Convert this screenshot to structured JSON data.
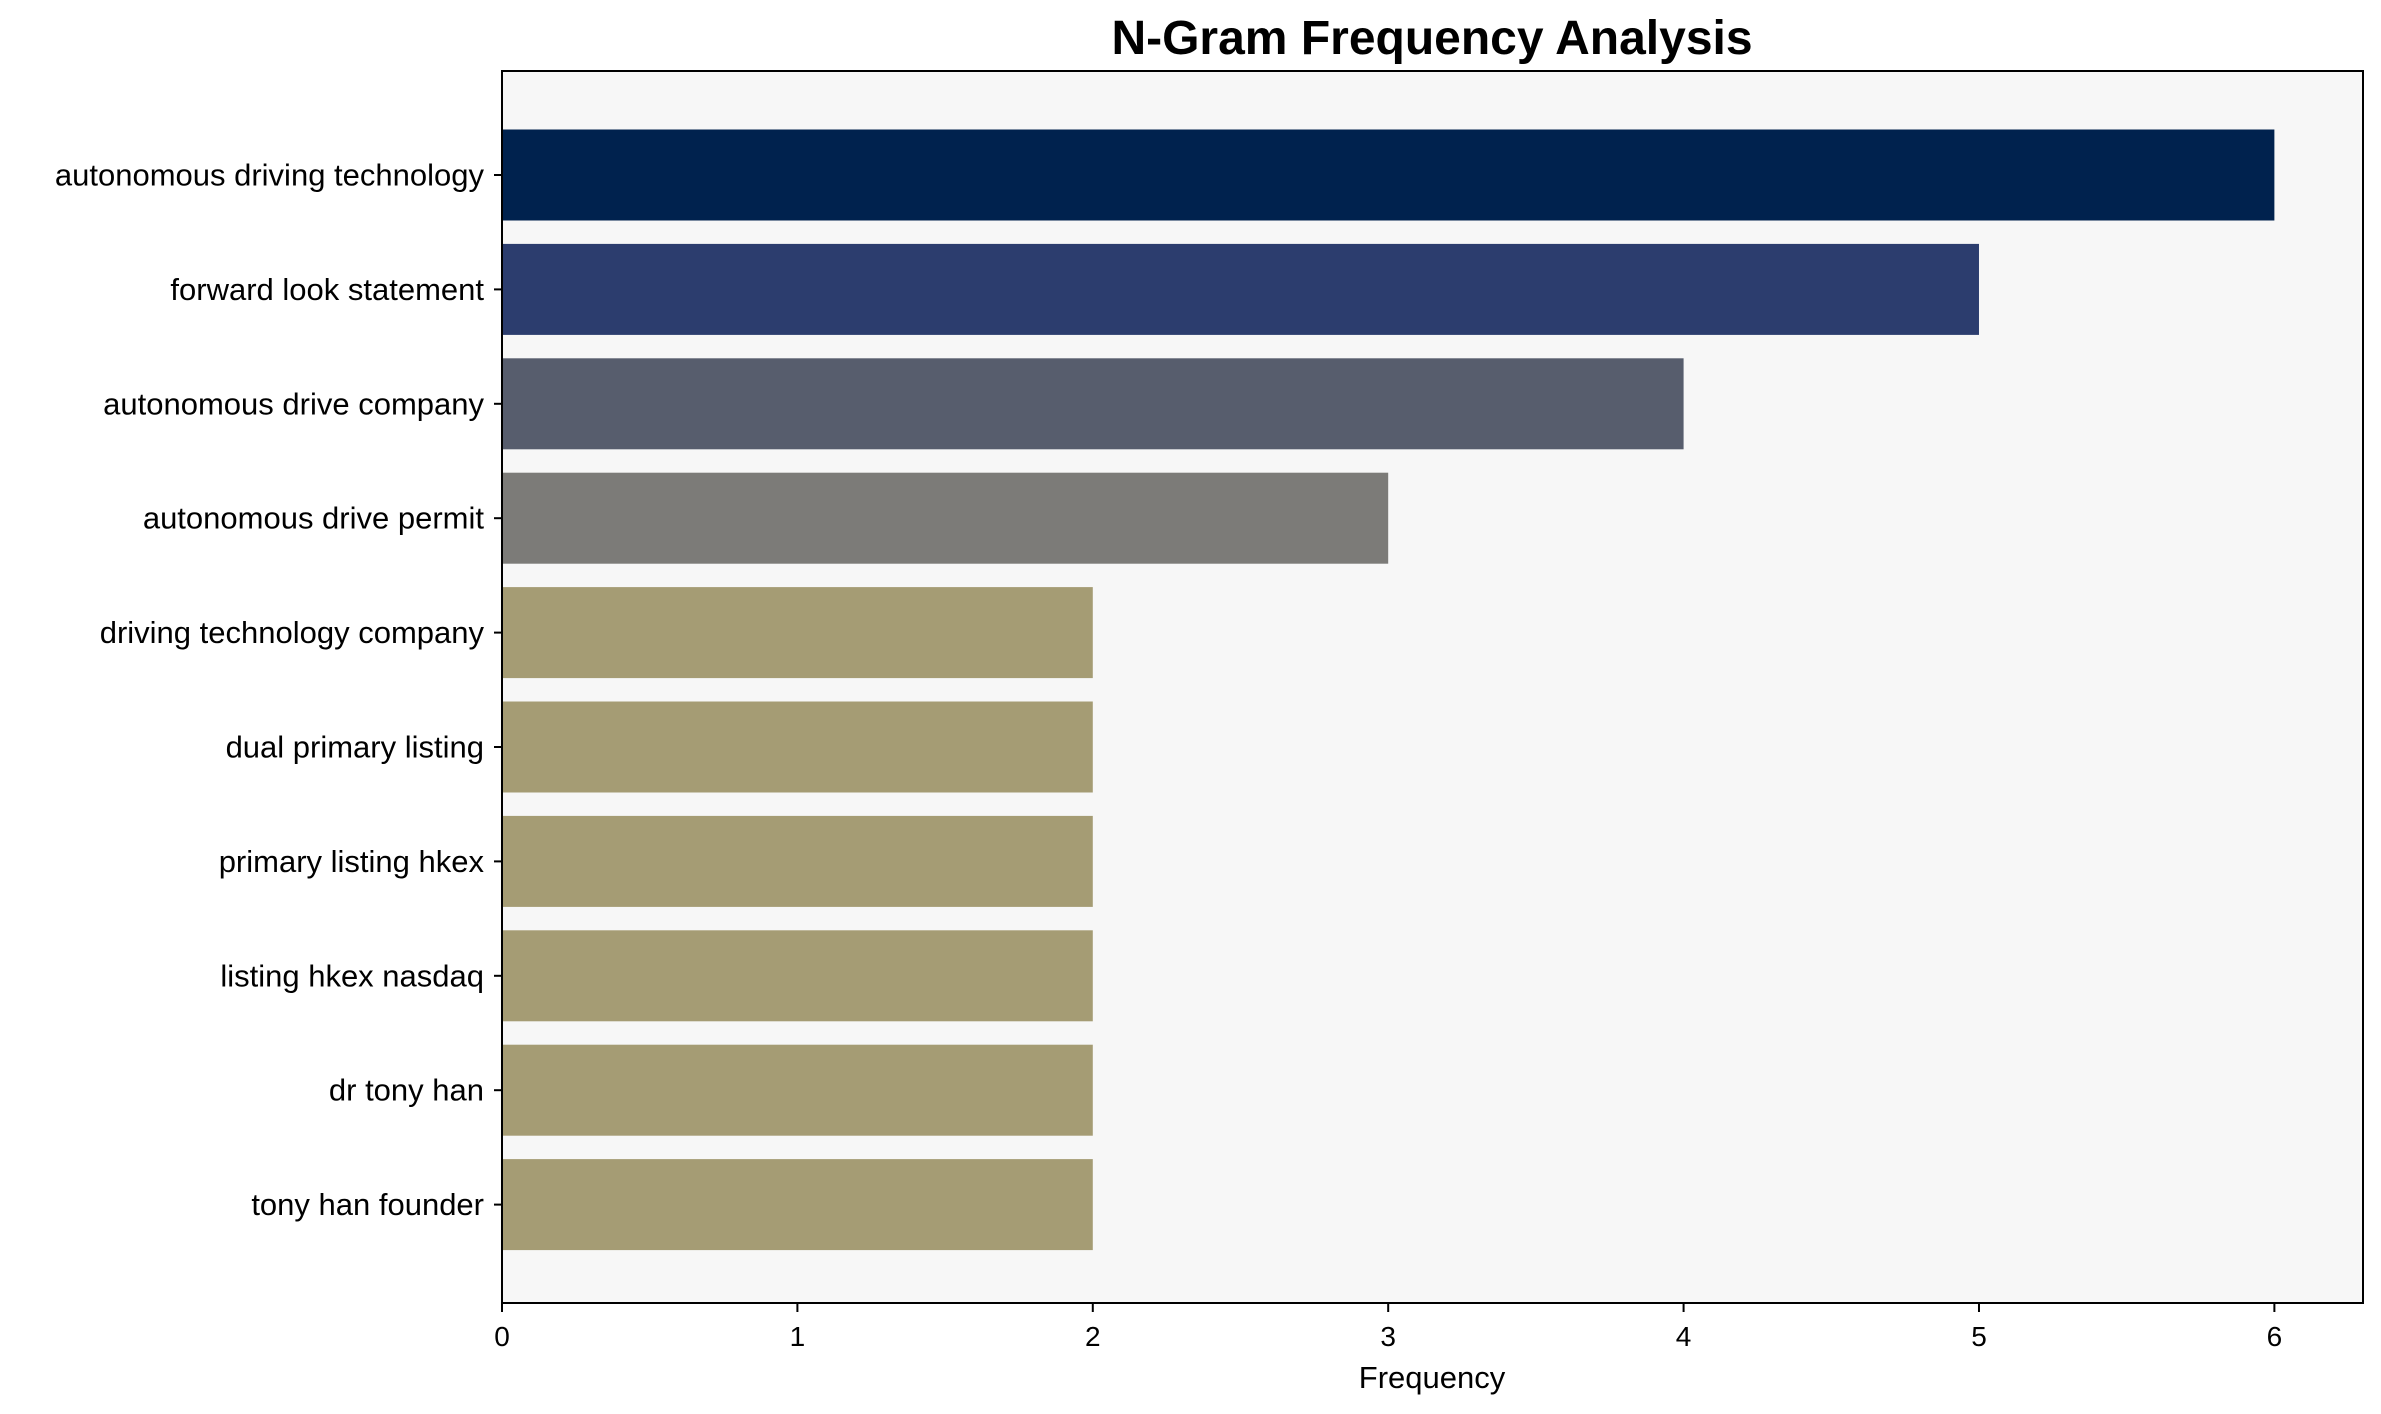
{
  "chart_data": {
    "type": "bar",
    "orientation": "horizontal",
    "title": "N-Gram Frequency Analysis",
    "xlabel": "Frequency",
    "ylabel": "",
    "categories": [
      "autonomous driving technology",
      "forward look statement",
      "autonomous drive company",
      "autonomous drive permit",
      "driving technology company",
      "dual primary listing",
      "primary listing hkex",
      "listing hkex nasdaq",
      "dr tony han",
      "tony han founder"
    ],
    "values": [
      6,
      5,
      4,
      3,
      2,
      2,
      2,
      2,
      2,
      2
    ],
    "bar_colors": [
      "#00224e",
      "#2c3d6e",
      "#575d6d",
      "#7c7b78",
      "#a59c74",
      "#a59c74",
      "#a59c74",
      "#a59c74",
      "#a59c74",
      "#a59c74"
    ],
    "xlim": [
      0,
      6.3
    ],
    "xticks": [
      "0",
      "1",
      "2",
      "3",
      "4",
      "5",
      "6"
    ],
    "grid": false,
    "legend": "none",
    "plot_background": "#f7f7f7"
  }
}
